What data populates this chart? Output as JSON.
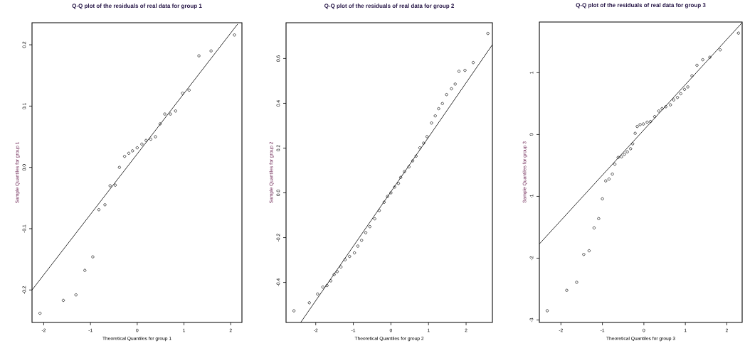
{
  "chart_data": [
    {
      "type": "scatter",
      "title": "Q-Q plot of the residuals of real data for group 1",
      "xlabel": "Theoretical Quantiles for group 1",
      "ylabel": "Sample Quantiles for group 1",
      "xlim": [
        -2.25,
        2.24
      ],
      "ylim": [
        -0.253,
        0.236
      ],
      "xticks": [
        -2,
        -1,
        0,
        1,
        2
      ],
      "yticks": [
        -0.2,
        -0.1,
        {
          "value": 0,
          "label": "0.0"
        },
        0.1,
        0.2
      ],
      "series": [
        {
          "marker": "circle",
          "color": "#000000",
          "x": [
            -2.08,
            -1.58,
            -1.31,
            -1.12,
            -0.95,
            -0.82,
            -0.69,
            -0.58,
            -0.47,
            -0.38,
            -0.27,
            -0.18,
            -0.1,
            0.0,
            0.1,
            0.19,
            0.29,
            0.39,
            0.49,
            0.59,
            0.71,
            0.82,
            0.97,
            1.11,
            1.32,
            1.58,
            2.08
          ],
          "values": [
            -0.238,
            -0.217,
            -0.208,
            -0.168,
            -0.146,
            -0.069,
            -0.061,
            -0.03,
            -0.029,
            0.0,
            0.018,
            0.023,
            0.027,
            0.032,
            0.038,
            0.044,
            0.046,
            0.05,
            0.071,
            0.087,
            0.087,
            0.092,
            0.121,
            0.126,
            0.182,
            0.19,
            0.216
          ]
        },
        {
          "type": "line",
          "color": "#000000",
          "x": [
            -2.25,
            2.15
          ],
          "values": [
            -0.2,
            0.234
          ]
        }
      ]
    },
    {
      "type": "scatter",
      "title": "Q-Q plot of the residuals of real data for group 2",
      "xlabel": "Theoretical Quantiles for group 2",
      "ylabel": "Sample Quantiles for group 2",
      "xlim": [
        -2.79,
        2.7
      ],
      "ylim": [
        -0.579,
        0.76
      ],
      "xticks": [
        -2,
        -1,
        0,
        1,
        2
      ],
      "yticks": [
        -0.4,
        -0.2,
        {
          "value": 0,
          "label": "0.0"
        },
        0.2,
        0.4,
        0.6
      ],
      "series": [
        {
          "marker": "circle",
          "color": "#000000",
          "x": [
            -2.58,
            -2.17,
            -1.95,
            -1.81,
            -1.7,
            -1.6,
            -1.51,
            -1.43,
            -1.33,
            -1.22,
            -1.1,
            -0.97,
            -0.88,
            -0.78,
            -0.67,
            -0.56,
            -0.43,
            -0.31,
            -0.18,
            -0.09,
            0.0,
            0.1,
            0.2,
            0.26,
            0.36,
            0.48,
            0.58,
            0.67,
            0.77,
            0.87,
            0.96,
            1.08,
            1.18,
            1.27,
            1.37,
            1.48,
            1.61,
            1.71,
            1.81,
            1.97,
            2.19,
            2.58
          ],
          "values": [
            -0.527,
            -0.491,
            -0.452,
            -0.421,
            -0.414,
            -0.393,
            -0.365,
            -0.352,
            -0.331,
            -0.299,
            -0.284,
            -0.268,
            -0.238,
            -0.212,
            -0.178,
            -0.151,
            -0.116,
            -0.079,
            -0.042,
            -0.016,
            0.0,
            0.026,
            0.042,
            0.069,
            0.095,
            0.116,
            0.143,
            0.164,
            0.201,
            0.222,
            0.251,
            0.312,
            0.344,
            0.376,
            0.399,
            0.439,
            0.465,
            0.486,
            0.543,
            0.547,
            0.582,
            0.712
          ]
        },
        {
          "type": "line",
          "color": "#000000",
          "x": [
            -2.4,
            2.7
          ],
          "values": [
            -0.579,
            0.662
          ]
        }
      ]
    },
    {
      "type": "scatter",
      "title": "Q-Q plot of the residuals of real data for group 3",
      "xlabel": "Theoretical Quantiles for group 3",
      "ylabel": "Sample Quantiles for group 3",
      "xlim": [
        -2.52,
        2.37
      ],
      "ylim": [
        -3.04,
        1.82
      ],
      "xticks": [
        -2,
        -1,
        0,
        1,
        2
      ],
      "yticks": [
        -3,
        -2,
        -1,
        0,
        1
      ],
      "series": [
        {
          "marker": "circle",
          "color": "#000000",
          "x": [
            -2.33,
            -1.86,
            -1.62,
            -1.45,
            -1.32,
            -1.2,
            -1.09,
            -1.0,
            -0.92,
            -0.84,
            -0.76,
            -0.7,
            -0.62,
            -0.54,
            -0.47,
            -0.4,
            -0.32,
            -0.27,
            -0.21,
            -0.16,
            -0.09,
            -0.01,
            0.08,
            0.16,
            0.26,
            0.36,
            0.44,
            0.53,
            0.64,
            0.72,
            0.81,
            0.89,
            0.98,
            1.06,
            1.16,
            1.28,
            1.42,
            1.59,
            1.84,
            2.28
          ],
          "values": [
            -2.85,
            -2.52,
            -2.39,
            -1.94,
            -1.88,
            -1.51,
            -1.36,
            -1.04,
            -0.75,
            -0.72,
            -0.64,
            -0.48,
            -0.37,
            -0.36,
            -0.32,
            -0.28,
            -0.23,
            -0.15,
            0.02,
            0.13,
            0.16,
            0.17,
            0.2,
            0.21,
            0.29,
            0.38,
            0.42,
            0.45,
            0.48,
            0.56,
            0.6,
            0.66,
            0.73,
            0.77,
            0.95,
            1.12,
            1.21,
            1.25,
            1.37,
            1.64
          ]
        },
        {
          "type": "line",
          "color": "#000000",
          "x": [
            -2.52,
            2.37
          ],
          "values": [
            -1.77,
            1.81
          ]
        }
      ]
    }
  ]
}
